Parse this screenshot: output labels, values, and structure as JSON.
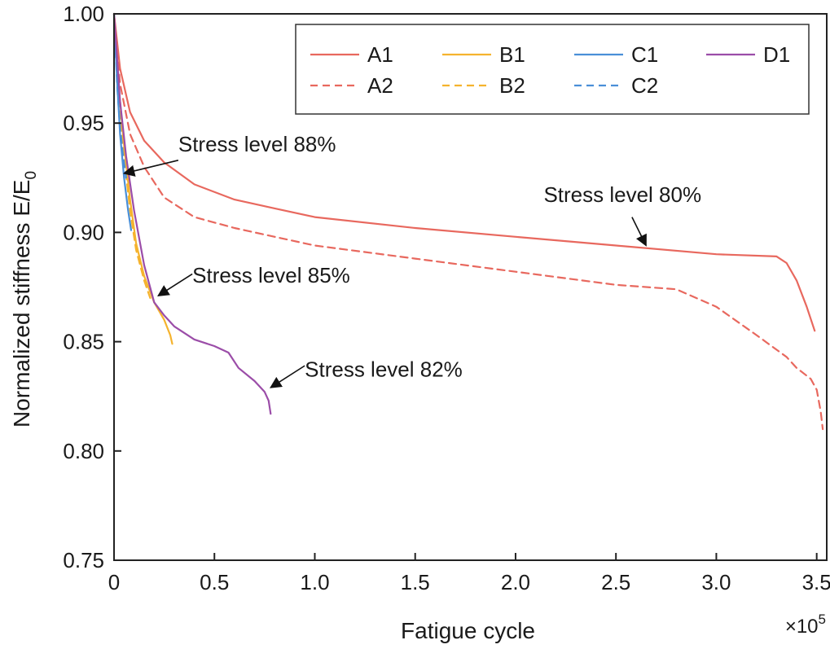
{
  "chart_data": {
    "type": "line",
    "title": "",
    "xlabel": "Fatigue cycle",
    "ylabel_main": "Normalized stiffness E/E",
    "ylabel_sub": "0",
    "x_scale_note": "×10",
    "x_scale_exp": "5",
    "xlim": [
      0,
      3.55
    ],
    "ylim": [
      0.75,
      1.0
    ],
    "x_ticks": [
      0,
      0.5,
      1.0,
      1.5,
      2.0,
      2.5,
      3.0,
      3.5
    ],
    "x_tick_labels": [
      "0",
      "0.5",
      "1.0",
      "1.5",
      "2.0",
      "2.5",
      "3.0",
      "3.5"
    ],
    "y_ticks": [
      0.75,
      0.8,
      0.85,
      0.9,
      0.95,
      1.0
    ],
    "y_tick_labels": [
      "0.75",
      "0.80",
      "0.85",
      "0.90",
      "0.95",
      "1.00"
    ],
    "grid": false,
    "legend_position": "top-right",
    "series": [
      {
        "name": "A1",
        "color": "#e8685e",
        "dash": "solid",
        "points": [
          [
            0,
            1.0
          ],
          [
            0.03,
            0.975
          ],
          [
            0.08,
            0.955
          ],
          [
            0.15,
            0.942
          ],
          [
            0.25,
            0.932
          ],
          [
            0.4,
            0.922
          ],
          [
            0.6,
            0.915
          ],
          [
            0.8,
            0.911
          ],
          [
            1.0,
            0.907
          ],
          [
            1.5,
            0.902
          ],
          [
            2.0,
            0.898
          ],
          [
            2.5,
            0.894
          ],
          [
            3.0,
            0.89
          ],
          [
            3.3,
            0.889
          ],
          [
            3.35,
            0.886
          ],
          [
            3.4,
            0.878
          ],
          [
            3.45,
            0.866
          ],
          [
            3.49,
            0.855
          ]
        ]
      },
      {
        "name": "A2",
        "color": "#e8685e",
        "dash": "dashed",
        "points": [
          [
            0,
            1.0
          ],
          [
            0.03,
            0.968
          ],
          [
            0.08,
            0.945
          ],
          [
            0.15,
            0.93
          ],
          [
            0.25,
            0.916
          ],
          [
            0.4,
            0.907
          ],
          [
            0.6,
            0.902
          ],
          [
            0.8,
            0.898
          ],
          [
            1.0,
            0.894
          ],
          [
            1.5,
            0.888
          ],
          [
            2.0,
            0.882
          ],
          [
            2.5,
            0.876
          ],
          [
            2.8,
            0.874
          ],
          [
            3.0,
            0.866
          ],
          [
            3.2,
            0.853
          ],
          [
            3.35,
            0.843
          ],
          [
            3.4,
            0.838
          ],
          [
            3.47,
            0.833
          ],
          [
            3.5,
            0.828
          ],
          [
            3.52,
            0.818
          ],
          [
            3.53,
            0.81
          ]
        ]
      },
      {
        "name": "B1",
        "color": "#f5b32e",
        "dash": "solid",
        "points": [
          [
            0,
            1.0
          ],
          [
            0.02,
            0.97
          ],
          [
            0.05,
            0.94
          ],
          [
            0.08,
            0.915
          ],
          [
            0.11,
            0.895
          ],
          [
            0.15,
            0.88
          ],
          [
            0.2,
            0.868
          ],
          [
            0.25,
            0.86
          ],
          [
            0.28,
            0.853
          ],
          [
            0.29,
            0.849
          ]
        ]
      },
      {
        "name": "B2",
        "color": "#f5b32e",
        "dash": "dashed",
        "points": [
          [
            0,
            1.0
          ],
          [
            0.02,
            0.965
          ],
          [
            0.05,
            0.935
          ],
          [
            0.08,
            0.91
          ],
          [
            0.11,
            0.892
          ],
          [
            0.15,
            0.878
          ],
          [
            0.18,
            0.87
          ]
        ]
      },
      {
        "name": "C1",
        "color": "#4a8fd8",
        "dash": "solid",
        "points": [
          [
            0,
            1.0
          ],
          [
            0.015,
            0.97
          ],
          [
            0.03,
            0.945
          ],
          [
            0.05,
            0.925
          ],
          [
            0.07,
            0.91
          ],
          [
            0.085,
            0.901
          ]
        ]
      },
      {
        "name": "C2",
        "color": "#4a8fd8",
        "dash": "dashed",
        "points": [
          [
            0,
            1.0
          ],
          [
            0.015,
            0.968
          ],
          [
            0.03,
            0.948
          ],
          [
            0.045,
            0.935
          ],
          [
            0.06,
            0.925
          ]
        ]
      },
      {
        "name": "D1",
        "color": "#9b4da8",
        "dash": "solid",
        "points": [
          [
            0,
            1.0
          ],
          [
            0.03,
            0.96
          ],
          [
            0.06,
            0.935
          ],
          [
            0.1,
            0.91
          ],
          [
            0.15,
            0.885
          ],
          [
            0.2,
            0.868
          ],
          [
            0.25,
            0.862
          ],
          [
            0.3,
            0.857
          ],
          [
            0.4,
            0.851
          ],
          [
            0.5,
            0.848
          ],
          [
            0.57,
            0.845
          ],
          [
            0.62,
            0.838
          ],
          [
            0.7,
            0.832
          ],
          [
            0.75,
            0.827
          ],
          [
            0.77,
            0.823
          ],
          [
            0.78,
            0.817
          ]
        ]
      }
    ],
    "legend": [
      {
        "label": "A1",
        "color": "#e8685e",
        "dash": "solid"
      },
      {
        "label": "B1",
        "color": "#f5b32e",
        "dash": "solid"
      },
      {
        "label": "C1",
        "color": "#4a8fd8",
        "dash": "solid"
      },
      {
        "label": "D1",
        "color": "#9b4da8",
        "dash": "solid"
      },
      {
        "label": "A2",
        "color": "#e8685e",
        "dash": "dashed"
      },
      {
        "label": "B2",
        "color": "#f5b32e",
        "dash": "dashed"
      },
      {
        "label": "C2",
        "color": "#4a8fd8",
        "dash": "dashed"
      }
    ],
    "annotations": [
      {
        "text": "Stress level 88%",
        "text_x": 0.32,
        "text_y": 0.937,
        "arrow_from": [
          0.32,
          0.933
        ],
        "arrow_to": [
          0.05,
          0.927
        ]
      },
      {
        "text": "Stress level 80%",
        "text_x": 2.14,
        "text_y": 0.914,
        "arrow_from": [
          2.58,
          0.907
        ],
        "arrow_to": [
          2.65,
          0.894
        ]
      },
      {
        "text": "Stress level 85%",
        "text_x": 0.39,
        "text_y": 0.877,
        "arrow_from": [
          0.39,
          0.881
        ],
        "arrow_to": [
          0.22,
          0.871
        ]
      },
      {
        "text": "Stress level 82%",
        "text_x": 0.95,
        "text_y": 0.834,
        "arrow_from": [
          0.95,
          0.839
        ],
        "arrow_to": [
          0.78,
          0.829
        ]
      }
    ]
  }
}
